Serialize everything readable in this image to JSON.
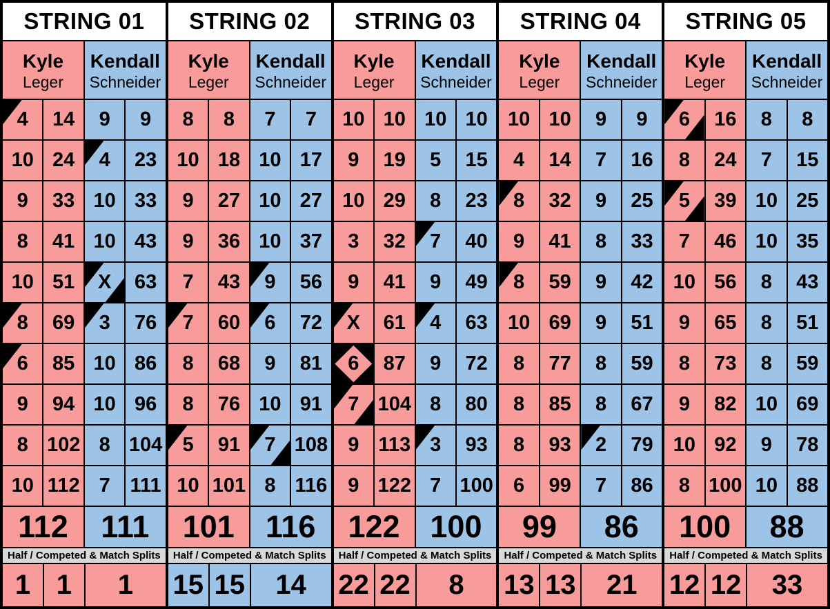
{
  "sheet": {
    "splits_caption": "Half / Competed & Match Splits",
    "colors": {
      "kyle_pink": "#F89B9B",
      "kendall_blue": "#9DC3E6",
      "splits_gray": "#D9D9D9",
      "header_white": "#FFFFFF",
      "border_black": "#000000",
      "mark_black": "#000000"
    },
    "strings": [
      {
        "title": "STRING 01",
        "players": [
          {
            "first": "Kyle",
            "last": "Leger",
            "team": "pink",
            "total": "112",
            "frames": [
              [
                "4",
                "14",
                "tl"
              ],
              [
                "10",
                "24",
                ""
              ],
              [
                "9",
                "33",
                ""
              ],
              [
                "8",
                "41",
                ""
              ],
              [
                "10",
                "51",
                ""
              ],
              [
                "8",
                "69",
                "tl"
              ],
              [
                "6",
                "85",
                "tl"
              ],
              [
                "9",
                "94",
                ""
              ],
              [
                "8",
                "102",
                ""
              ],
              [
                "10",
                "112",
                ""
              ]
            ]
          },
          {
            "first": "Kendall",
            "last": "Schneider",
            "team": "blue",
            "total": "111",
            "frames": [
              [
                "9",
                "9",
                ""
              ],
              [
                "4",
                "23",
                "tl"
              ],
              [
                "10",
                "33",
                ""
              ],
              [
                "10",
                "43",
                ""
              ],
              [
                "X",
                "63",
                "tlbr"
              ],
              [
                "3",
                "76",
                "tl"
              ],
              [
                "10",
                "86",
                ""
              ],
              [
                "10",
                "96",
                ""
              ],
              [
                "8",
                "104",
                ""
              ],
              [
                "7",
                "111",
                ""
              ]
            ]
          }
        ],
        "splits": {
          "team": "pink",
          "values": [
            "1",
            "1",
            "1"
          ]
        }
      },
      {
        "title": "STRING 02",
        "players": [
          {
            "first": "Kyle",
            "last": "Leger",
            "team": "pink",
            "total": "101",
            "frames": [
              [
                "8",
                "8",
                ""
              ],
              [
                "10",
                "18",
                ""
              ],
              [
                "9",
                "27",
                ""
              ],
              [
                "9",
                "36",
                ""
              ],
              [
                "7",
                "43",
                ""
              ],
              [
                "7",
                "60",
                "tl"
              ],
              [
                "8",
                "68",
                ""
              ],
              [
                "8",
                "76",
                ""
              ],
              [
                "5",
                "91",
                "tl"
              ],
              [
                "10",
                "101",
                ""
              ]
            ]
          },
          {
            "first": "Kendall",
            "last": "Schneider",
            "team": "blue",
            "total": "116",
            "frames": [
              [
                "7",
                "7",
                ""
              ],
              [
                "10",
                "17",
                ""
              ],
              [
                "10",
                "27",
                ""
              ],
              [
                "10",
                "37",
                ""
              ],
              [
                "9",
                "56",
                "tl"
              ],
              [
                "6",
                "72",
                "tl"
              ],
              [
                "9",
                "81",
                ""
              ],
              [
                "10",
                "91",
                ""
              ],
              [
                "7",
                "108",
                "tlbr"
              ],
              [
                "8",
                "116",
                ""
              ]
            ]
          }
        ],
        "splits": {
          "team": "blue",
          "values": [
            "15",
            "15",
            "14"
          ]
        }
      },
      {
        "title": "STRING 03",
        "players": [
          {
            "first": "Kyle",
            "last": "Leger",
            "team": "pink",
            "total": "122",
            "frames": [
              [
                "10",
                "10",
                ""
              ],
              [
                "9",
                "19",
                ""
              ],
              [
                "10",
                "29",
                ""
              ],
              [
                "3",
                "32",
                ""
              ],
              [
                "9",
                "41",
                ""
              ],
              [
                "X",
                "61",
                "tl"
              ],
              [
                "6",
                "87",
                "d"
              ],
              [
                "7",
                "104",
                "tlbr"
              ],
              [
                "9",
                "113",
                ""
              ],
              [
                "9",
                "122",
                ""
              ]
            ]
          },
          {
            "first": "Kendall",
            "last": "Schneider",
            "team": "blue",
            "total": "100",
            "frames": [
              [
                "10",
                "10",
                ""
              ],
              [
                "5",
                "15",
                ""
              ],
              [
                "8",
                "23",
                ""
              ],
              [
                "7",
                "40",
                "tl"
              ],
              [
                "9",
                "49",
                ""
              ],
              [
                "4",
                "63",
                "tl"
              ],
              [
                "9",
                "72",
                ""
              ],
              [
                "8",
                "80",
                ""
              ],
              [
                "3",
                "93",
                "tl"
              ],
              [
                "7",
                "100",
                ""
              ]
            ]
          }
        ],
        "splits": {
          "team": "pink",
          "values": [
            "22",
            "22",
            "8"
          ]
        }
      },
      {
        "title": "STRING 04",
        "players": [
          {
            "first": "Kyle",
            "last": "Leger",
            "team": "pink",
            "total": "99",
            "frames": [
              [
                "10",
                "10",
                ""
              ],
              [
                "4",
                "14",
                ""
              ],
              [
                "8",
                "32",
                "tl"
              ],
              [
                "9",
                "41",
                ""
              ],
              [
                "8",
                "59",
                "tl"
              ],
              [
                "10",
                "69",
                ""
              ],
              [
                "8",
                "77",
                ""
              ],
              [
                "8",
                "85",
                ""
              ],
              [
                "8",
                "93",
                ""
              ],
              [
                "6",
                "99",
                ""
              ]
            ]
          },
          {
            "first": "Kendall",
            "last": "Schneider",
            "team": "blue",
            "total": "86",
            "frames": [
              [
                "9",
                "9",
                ""
              ],
              [
                "7",
                "16",
                ""
              ],
              [
                "9",
                "25",
                ""
              ],
              [
                "8",
                "33",
                ""
              ],
              [
                "9",
                "42",
                ""
              ],
              [
                "9",
                "51",
                ""
              ],
              [
                "8",
                "59",
                ""
              ],
              [
                "8",
                "67",
                ""
              ],
              [
                "2",
                "79",
                "tl"
              ],
              [
                "7",
                "86",
                ""
              ]
            ]
          }
        ],
        "splits": {
          "team": "pink",
          "values": [
            "13",
            "13",
            "21"
          ]
        }
      },
      {
        "title": "STRING 05",
        "players": [
          {
            "first": "Kyle",
            "last": "Leger",
            "team": "pink",
            "total": "100",
            "frames": [
              [
                "6",
                "16",
                "tlbr"
              ],
              [
                "8",
                "24",
                ""
              ],
              [
                "5",
                "39",
                "tlbr"
              ],
              [
                "7",
                "46",
                ""
              ],
              [
                "10",
                "56",
                ""
              ],
              [
                "9",
                "65",
                ""
              ],
              [
                "8",
                "73",
                ""
              ],
              [
                "9",
                "82",
                ""
              ],
              [
                "10",
                "92",
                ""
              ],
              [
                "8",
                "100",
                ""
              ]
            ]
          },
          {
            "first": "Kendall",
            "last": "Schneider",
            "team": "blue",
            "total": "88",
            "frames": [
              [
                "8",
                "8",
                ""
              ],
              [
                "7",
                "15",
                ""
              ],
              [
                "10",
                "25",
                ""
              ],
              [
                "10",
                "35",
                ""
              ],
              [
                "8",
                "43",
                ""
              ],
              [
                "8",
                "51",
                ""
              ],
              [
                "8",
                "59",
                ""
              ],
              [
                "10",
                "69",
                ""
              ],
              [
                "9",
                "78",
                ""
              ],
              [
                "10",
                "88",
                ""
              ]
            ]
          }
        ],
        "splits": {
          "team": "pink",
          "values": [
            "12",
            "12",
            "33"
          ]
        }
      }
    ]
  }
}
